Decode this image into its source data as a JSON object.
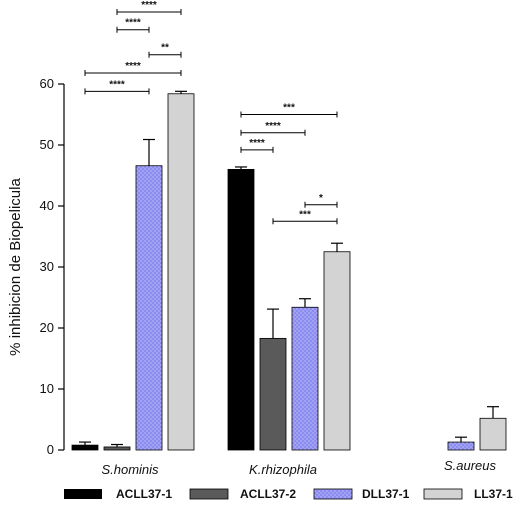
{
  "chart_data": {
    "type": "bar",
    "title": "",
    "xlabel": "",
    "ylabel": "% inhibicion de Biopelicula",
    "ylim": [
      0,
      60
    ],
    "yticks": [
      0,
      10,
      20,
      30,
      40,
      50,
      60
    ],
    "categories": [
      "S.hominis",
      "K.rhizophila",
      "S.aureus"
    ],
    "series": [
      {
        "name": "ACLL37-1",
        "color": "#000000",
        "pattern": "solid",
        "values": [
          0.8,
          46.0,
          null
        ],
        "errors": [
          0.5,
          0.4,
          null
        ]
      },
      {
        "name": "ACLL37-2",
        "color": "#5a5a5a",
        "pattern": "solid",
        "values": [
          0.5,
          18.3,
          null
        ],
        "errors": [
          0.4,
          4.8,
          null
        ]
      },
      {
        "name": "DLL37-1",
        "color": "#8b8bf0",
        "pattern": "dotted",
        "values": [
          46.6,
          23.4,
          1.3
        ],
        "errors": [
          4.3,
          1.4,
          0.8
        ]
      },
      {
        "name": "LL37-1",
        "color": "#d3d3d3",
        "pattern": "solid",
        "values": [
          58.4,
          32.5,
          5.2
        ],
        "errors": [
          0.4,
          1.4,
          1.9
        ]
      }
    ],
    "significance": [
      {
        "category": "S.hominis",
        "from": "ACLL37-1",
        "to": "DLL37-1",
        "label": "****",
        "y": 58.8
      },
      {
        "category": "S.hominis",
        "from": "ACLL37-1",
        "to": "LL37-1",
        "label": "****",
        "y": 61.8
      },
      {
        "category": "S.hominis",
        "from": "DLL37-1",
        "to": "LL37-1",
        "label": "**",
        "y": 64.8
      },
      {
        "category": "S.hominis",
        "from": "ACLL37-2",
        "to": "DLL37-1",
        "label": "****",
        "y": 68.9
      },
      {
        "category": "S.hominis",
        "from": "ACLL37-2",
        "to": "LL37-1",
        "label": "****",
        "y": 71.8
      },
      {
        "category": "K.rhizophila",
        "from": "ACLL37-1",
        "to": "ACLL37-2",
        "label": "****",
        "y": 49.2
      },
      {
        "category": "K.rhizophila",
        "from": "ACLL37-1",
        "to": "DLL37-1",
        "label": "****",
        "y": 52.0
      },
      {
        "category": "K.rhizophila",
        "from": "ACLL37-1",
        "to": "LL37-1",
        "label": "***",
        "y": 55.0
      },
      {
        "category": "K.rhizophila",
        "from": "ACLL37-2",
        "to": "LL37-1",
        "label": "***",
        "y": 37.5
      },
      {
        "category": "K.rhizophila",
        "from": "DLL37-1",
        "to": "LL37-1",
        "label": "*",
        "y": 40.2
      }
    ],
    "legend_position": "bottom"
  }
}
